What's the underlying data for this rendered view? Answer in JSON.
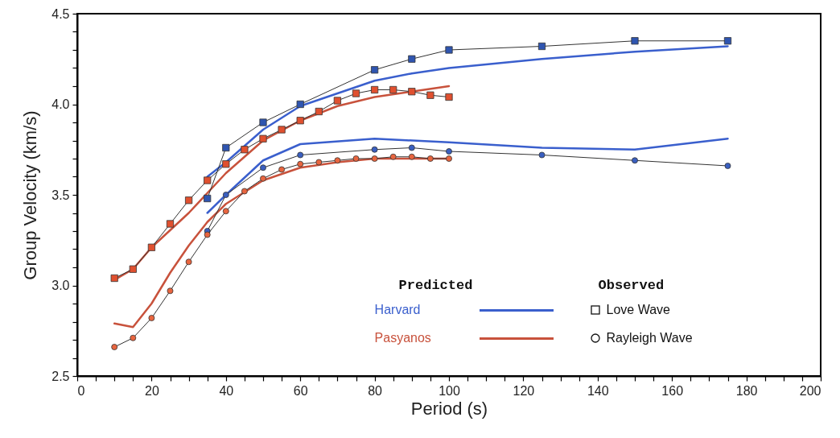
{
  "chart_data": {
    "type": "line",
    "xlabel": "Period (s)",
    "ylabel": "Group Velocity (km/s)",
    "xlim": [
      0,
      200
    ],
    "xticks": [
      0,
      {
        "value": 5,
        "label": null
      },
      {
        "value": 10,
        "label": null
      },
      {
        "value": 15,
        "label": null
      },
      20,
      {
        "value": 25,
        "label": null
      },
      {
        "value": 30,
        "label": null
      },
      {
        "value": 35,
        "label": null
      },
      40,
      {
        "value": 45,
        "label": null
      },
      {
        "value": 50,
        "label": null
      },
      {
        "value": 55,
        "label": null
      },
      60,
      {
        "value": 65,
        "label": null
      },
      {
        "value": 70,
        "label": null
      },
      {
        "value": 75,
        "label": null
      },
      80,
      {
        "value": 85,
        "label": null
      },
      {
        "value": 90,
        "label": null
      },
      {
        "value": 95,
        "label": null
      },
      100,
      {
        "value": 105,
        "label": null
      },
      {
        "value": 110,
        "label": null
      },
      {
        "value": 115,
        "label": null
      },
      120,
      {
        "value": 125,
        "label": null
      },
      {
        "value": 130,
        "label": null
      },
      {
        "value": 135,
        "label": null
      },
      140,
      {
        "value": 145,
        "label": null
      },
      {
        "value": 150,
        "label": null
      },
      {
        "value": 155,
        "label": null
      },
      160,
      {
        "value": 165,
        "label": null
      },
      {
        "value": 170,
        "label": null
      },
      {
        "value": 175,
        "label": null
      },
      180,
      {
        "value": 185,
        "label": null
      },
      {
        "value": 190,
        "label": null
      },
      {
        "value": 195,
        "label": null
      },
      200
    ],
    "ylim": [
      2.5,
      4.5
    ],
    "yticks": [
      2.5,
      {
        "value": 2.6,
        "label": null
      },
      {
        "value": 2.7,
        "label": null
      },
      {
        "value": 2.8,
        "label": null
      },
      {
        "value": 2.9,
        "label": null
      },
      {
        "value": 3,
        "label": "3.0"
      },
      {
        "value": 3.1,
        "label": null
      },
      {
        "value": 3.2,
        "label": null
      },
      {
        "value": 3.3,
        "label": null
      },
      {
        "value": 3.4,
        "label": null
      },
      3.5,
      {
        "value": 3.6,
        "label": null
      },
      {
        "value": 3.7,
        "label": null
      },
      {
        "value": 3.8,
        "label": null
      },
      {
        "value": 3.9,
        "label": null
      },
      {
        "value": 4,
        "label": "4.0"
      },
      {
        "value": 4.1,
        "label": null
      },
      {
        "value": 4.2,
        "label": null
      },
      {
        "value": 4.3,
        "label": null
      },
      {
        "value": 4.4,
        "label": null
      },
      4.5
    ],
    "grid": false,
    "legend": "bottom",
    "annotations": [
      "Predicted",
      "Observed",
      "Love Wave",
      "Rayleigh Wave"
    ],
    "series": [
      {
        "name": "Harvard",
        "color": "#3a5fcd",
        "x": [
          35,
          40,
          50,
          60,
          80,
          90,
          100,
          125,
          150,
          175
        ],
        "values": [
          3.6,
          3.68,
          3.86,
          3.99,
          4.13,
          4.17,
          4.2,
          4.25,
          4.29,
          4.32
        ]
      },
      {
        "color": "#3a5fcd",
        "x": [
          35,
          40,
          50,
          60,
          80,
          100,
          125,
          150,
          175
        ],
        "values": [
          3.4,
          3.5,
          3.69,
          3.78,
          3.81,
          3.79,
          3.76,
          3.75,
          3.81
        ]
      },
      {
        "name": "Pasyanos",
        "color": "#c8523c",
        "x": [
          10,
          15,
          20,
          30,
          40,
          50,
          60,
          70,
          80,
          90,
          100
        ],
        "values": [
          3.03,
          3.09,
          3.21,
          3.4,
          3.62,
          3.8,
          3.91,
          3.99,
          4.04,
          4.07,
          4.1
        ]
      },
      {
        "color": "#c8523c",
        "x": [
          10,
          15,
          20,
          25,
          30,
          35,
          40,
          50,
          60,
          70,
          80,
          100
        ],
        "values": [
          2.79,
          2.77,
          2.9,
          3.07,
          3.22,
          3.35,
          3.45,
          3.58,
          3.65,
          3.68,
          3.7,
          3.7
        ]
      },
      {
        "marker": "square",
        "color": "#2f55b0",
        "x": [
          35,
          40,
          50,
          60,
          80,
          90,
          100,
          125,
          150,
          175
        ],
        "values": [
          3.48,
          3.76,
          3.9,
          4.0,
          4.19,
          4.25,
          4.3,
          4.32,
          4.35,
          4.35
        ]
      },
      {
        "marker": "square",
        "color": "#e0502f",
        "x": [
          10,
          15,
          20,
          25,
          30,
          35,
          40,
          45,
          50,
          55,
          60,
          65,
          70,
          75,
          80,
          85,
          90,
          95,
          100
        ],
        "values": [
          3.04,
          3.09,
          3.21,
          3.34,
          3.47,
          3.58,
          3.67,
          3.75,
          3.81,
          3.86,
          3.91,
          3.96,
          4.02,
          4.06,
          4.08,
          4.08,
          4.07,
          4.05,
          4.04
        ]
      },
      {
        "marker": "circle",
        "color": "#3a5fc0",
        "x": [
          35,
          40,
          50,
          60,
          80,
          90,
          100,
          125,
          150,
          175
        ],
        "values": [
          3.3,
          3.5,
          3.65,
          3.72,
          3.75,
          3.76,
          3.74,
          3.72,
          3.69,
          3.66
        ]
      },
      {
        "marker": "circle",
        "color": "#e8653f",
        "x": [
          10,
          15,
          20,
          25,
          30,
          35,
          40,
          45,
          50,
          55,
          60,
          65,
          70,
          75,
          80,
          85,
          90,
          95,
          100
        ],
        "values": [
          2.66,
          2.71,
          2.82,
          2.97,
          3.13,
          3.28,
          3.41,
          3.52,
          3.59,
          3.64,
          3.67,
          3.68,
          3.69,
          3.7,
          3.7,
          3.71,
          3.71,
          3.7,
          3.7
        ]
      }
    ]
  }
}
